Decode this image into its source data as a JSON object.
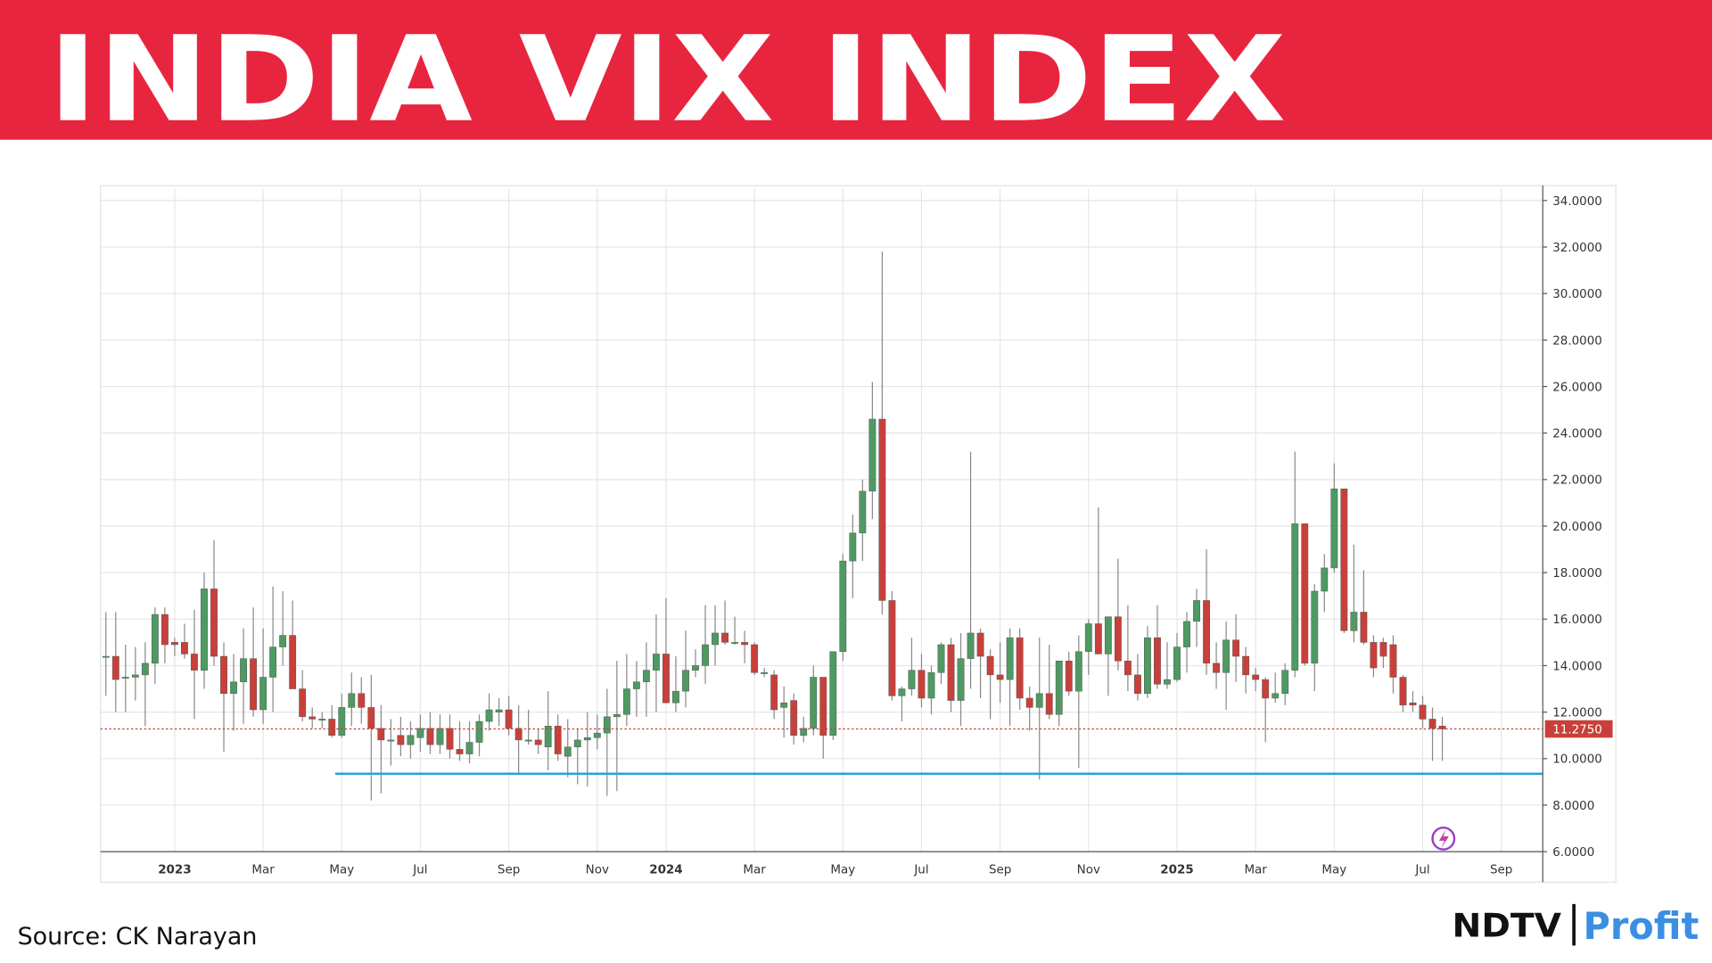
{
  "header": {
    "title": "INDIA VIX INDEX"
  },
  "footer": {
    "source": "Source: CK Narayan",
    "logo_left": "NDTV",
    "logo_right": "Profit"
  },
  "chart_data": {
    "type": "candlestick",
    "categories": [
      null,
      null,
      null,
      null,
      null,
      null,
      null,
      "2023",
      null,
      null,
      null,
      null,
      null,
      null,
      null,
      null,
      "Mar",
      null,
      null,
      null,
      null,
      null,
      null,
      null,
      "May",
      null,
      null,
      null,
      null,
      null,
      null,
      null,
      "Jul",
      null,
      null,
      null,
      null,
      null,
      null,
      null,
      null,
      "Sep",
      null,
      null,
      null,
      null,
      null,
      null,
      null,
      null,
      "Nov",
      null,
      null,
      null,
      null,
      null,
      null,
      "2024",
      null,
      null,
      null,
      null,
      null,
      null,
      null,
      null,
      "Mar",
      null,
      null,
      null,
      null,
      null,
      null,
      null,
      null,
      "May",
      null,
      null,
      null,
      null,
      null,
      null,
      null,
      "Jul",
      null,
      null,
      null,
      null,
      null,
      null,
      null,
      "Sep",
      null,
      null,
      null,
      null,
      null,
      null,
      null,
      null,
      "Nov",
      null,
      null,
      null,
      null,
      null,
      null,
      null,
      null,
      "2025",
      null,
      null,
      null,
      null,
      null,
      null,
      null,
      "Mar",
      null,
      null,
      null,
      null,
      null,
      null,
      null,
      "May",
      null,
      null,
      null,
      null,
      null,
      null,
      null,
      null,
      "Jul",
      null,
      null,
      null,
      null,
      null,
      null,
      null,
      "Sep",
      null,
      null
    ],
    "open": [
      14.4,
      14.4,
      13.5,
      13.5,
      13.6,
      14.1,
      16.2,
      15.0,
      15.0,
      14.5,
      13.8,
      17.3,
      14.4,
      12.8,
      13.3,
      14.3,
      12.1,
      13.5,
      14.8,
      15.3,
      13.0,
      11.8,
      11.7,
      11.7,
      11.0,
      12.2,
      12.8,
      12.2,
      11.3,
      10.8,
      11.0,
      10.6,
      10.9,
      11.3,
      10.6,
      11.3,
      10.4,
      10.2,
      10.7,
      11.6,
      12.0,
      12.1,
      11.3,
      10.8,
      10.8,
      10.5,
      11.4,
      10.1,
      10.5,
      10.8,
      10.9,
      11.1,
      11.8,
      11.9,
      13.0,
      13.3,
      13.8,
      14.5,
      12.4,
      12.9,
      13.8,
      14.0,
      14.9,
      15.4,
      15.0,
      15.0,
      14.9,
      13.7,
      13.6,
      12.2,
      12.5,
      11.0,
      11.3,
      13.5,
      11.0,
      14.6,
      18.5,
      19.7,
      21.5,
      24.6,
      16.8,
      12.7,
      13.0,
      13.8,
      12.6,
      13.7,
      14.9,
      12.5,
      14.3,
      15.4,
      14.4,
      13.6,
      13.4,
      15.2,
      12.6,
      12.2,
      12.8,
      11.9,
      14.2,
      12.9,
      14.6,
      15.8,
      14.5,
      16.1,
      14.2,
      13.6,
      12.8,
      15.2,
      13.2,
      13.4,
      14.8,
      15.9,
      16.8,
      14.1,
      13.7,
      15.1,
      14.4,
      13.6,
      13.4,
      12.6,
      12.8,
      13.8,
      20.1,
      14.1,
      17.2,
      18.2,
      21.6,
      15.5,
      16.3,
      15.0,
      15.0,
      14.9,
      13.5,
      12.4,
      12.3,
      11.7,
      11.4,
      null,
      null,
      null,
      null,
      null,
      null,
      null,
      null
    ],
    "high": [
      16.3,
      16.3,
      14.9,
      14.8,
      15.0,
      16.5,
      16.5,
      15.2,
      15.8,
      16.4,
      18.0,
      19.4,
      15.0,
      14.5,
      15.6,
      16.5,
      15.6,
      17.4,
      17.2,
      16.8,
      13.8,
      12.2,
      12.0,
      12.3,
      12.8,
      13.7,
      13.5,
      13.6,
      12.3,
      11.7,
      11.8,
      11.6,
      11.9,
      12.0,
      11.9,
      11.9,
      11.6,
      11.6,
      11.9,
      12.8,
      12.6,
      12.7,
      12.3,
      12.1,
      11.3,
      12.9,
      11.9,
      11.7,
      11.3,
      12.0,
      11.9,
      13.0,
      14.2,
      14.5,
      14.2,
      15.0,
      16.2,
      16.9,
      14.4,
      15.5,
      14.7,
      16.6,
      16.6,
      16.8,
      16.1,
      15.5,
      15.0,
      13.9,
      13.8,
      13.1,
      12.8,
      11.8,
      14.0,
      13.5,
      14.6,
      18.8,
      20.5,
      22.0,
      26.2,
      31.8,
      17.2,
      13.1,
      15.2,
      14.5,
      14.0,
      15.0,
      15.2,
      15.4,
      23.2,
      15.6,
      14.7,
      15.0,
      15.6,
      15.6,
      13.1,
      15.2,
      14.9,
      14.2,
      14.6,
      15.3,
      16.0,
      20.8,
      16.1,
      18.6,
      16.6,
      14.5,
      15.7,
      16.6,
      15.0,
      15.4,
      16.3,
      17.3,
      19.0,
      15.0,
      15.9,
      16.2,
      14.8,
      13.9,
      13.5,
      13.7,
      14.1,
      23.2,
      20.1,
      17.5,
      18.8,
      22.7,
      21.6,
      19.2,
      18.1,
      15.3,
      15.2,
      15.3,
      13.6,
      12.9,
      12.7,
      12.2,
      11.8,
      null,
      null,
      null,
      null,
      null,
      null,
      null,
      null
    ],
    "low": [
      12.7,
      12.0,
      12.0,
      12.5,
      11.4,
      13.2,
      14.1,
      14.4,
      14.3,
      11.7,
      13.0,
      14.0,
      10.3,
      11.2,
      11.5,
      11.8,
      11.5,
      12.0,
      14.0,
      13.0,
      11.6,
      11.3,
      11.3,
      10.9,
      10.9,
      11.4,
      11.5,
      8.2,
      8.5,
      9.7,
      10.1,
      10.0,
      10.3,
      10.2,
      10.2,
      10.0,
      9.9,
      9.8,
      10.1,
      11.2,
      11.4,
      11.0,
      9.4,
      10.6,
      10.2,
      9.5,
      9.9,
      9.2,
      8.9,
      8.8,
      10.4,
      8.4,
      8.6,
      11.4,
      11.8,
      11.8,
      12.0,
      12.4,
      12.0,
      12.2,
      13.5,
      13.2,
      14.0,
      14.9,
      14.9,
      14.1,
      13.6,
      13.5,
      11.7,
      10.9,
      10.6,
      10.7,
      11.0,
      10.0,
      10.8,
      14.2,
      16.9,
      18.5,
      20.3,
      16.2,
      12.5,
      11.6,
      12.7,
      12.2,
      11.9,
      13.2,
      12.0,
      11.4,
      13.0,
      12.6,
      11.7,
      12.4,
      11.4,
      12.1,
      11.2,
      9.1,
      11.7,
      11.4,
      12.7,
      9.6,
      13.6,
      14.5,
      12.7,
      13.8,
      12.9,
      12.5,
      12.6,
      13.0,
      13.0,
      13.3,
      13.7,
      14.8,
      13.6,
      13.0,
      12.1,
      13.3,
      12.8,
      12.9,
      10.7,
      12.4,
      12.3,
      13.5,
      14.0,
      12.9,
      16.3,
      18.0,
      15.4,
      15.0,
      14.9,
      13.5,
      13.9,
      12.8,
      12.0,
      12.0,
      11.3,
      9.9,
      9.9,
      null,
      null,
      null,
      null,
      null,
      null,
      null,
      null
    ],
    "close": [
      14.4,
      13.4,
      13.5,
      13.6,
      14.1,
      16.2,
      14.9,
      14.9,
      14.5,
      13.8,
      17.3,
      14.4,
      12.8,
      13.3,
      14.3,
      12.1,
      13.5,
      14.8,
      15.3,
      13.0,
      11.8,
      11.7,
      11.7,
      11.0,
      12.2,
      12.8,
      12.2,
      11.3,
      10.8,
      10.8,
      10.6,
      11.0,
      11.3,
      10.6,
      11.3,
      10.4,
      10.2,
      10.7,
      11.6,
      12.1,
      12.1,
      11.3,
      10.8,
      10.8,
      10.6,
      11.4,
      10.2,
      10.5,
      10.8,
      10.9,
      11.1,
      11.8,
      11.9,
      13.0,
      13.3,
      13.8,
      14.5,
      12.4,
      12.9,
      13.8,
      14.0,
      14.9,
      15.4,
      15.0,
      15.0,
      14.9,
      13.7,
      13.7,
      12.1,
      12.4,
      11.0,
      11.3,
      13.5,
      11.0,
      14.6,
      18.5,
      19.7,
      21.5,
      24.6,
      16.8,
      12.7,
      13.0,
      13.8,
      12.6,
      13.7,
      14.9,
      12.5,
      14.3,
      15.4,
      14.4,
      13.6,
      13.4,
      15.2,
      12.6,
      12.2,
      12.8,
      11.9,
      14.2,
      12.9,
      14.6,
      15.8,
      14.5,
      16.1,
      14.2,
      13.6,
      12.8,
      15.2,
      13.2,
      13.4,
      14.8,
      15.9,
      16.8,
      14.1,
      13.7,
      15.1,
      14.4,
      13.6,
      13.4,
      12.6,
      12.8,
      13.8,
      20.1,
      14.1,
      17.2,
      18.2,
      21.6,
      15.5,
      16.3,
      15.0,
      13.9,
      14.4,
      13.5,
      12.3,
      12.3,
      11.7,
      11.3,
      11.275,
      null,
      null,
      null,
      null,
      null,
      null,
      null,
      null
    ],
    "up_color": "#4e9a62",
    "down_color": "#c9403a",
    "ylim": [
      6,
      34.5
    ],
    "yticks": [
      {
        "value": 6,
        "label": "6.0000"
      },
      {
        "value": 8,
        "label": "8.0000"
      },
      {
        "value": 10,
        "label": "10.0000"
      },
      {
        "value": 12,
        "label": "12.0000"
      },
      {
        "value": 14,
        "label": "14.0000"
      },
      {
        "value": 16,
        "label": "16.0000"
      },
      {
        "value": 18,
        "label": "18.0000"
      },
      {
        "value": 20,
        "label": "20.0000"
      },
      {
        "value": 22,
        "label": "22.0000"
      },
      {
        "value": 24,
        "label": "24.0000"
      },
      {
        "value": 26,
        "label": "26.0000"
      },
      {
        "value": 28,
        "label": "28.0000"
      },
      {
        "value": 30,
        "label": "30.0000"
      },
      {
        "value": 32,
        "label": "32.0000"
      },
      {
        "value": 34,
        "label": "34.0000"
      }
    ],
    "grid": true,
    "last_price": {
      "value": 11.275,
      "label": "11.2750",
      "color": "#c9403a"
    },
    "support_level": {
      "value": 9.35,
      "color": "#29a3d6"
    }
  }
}
